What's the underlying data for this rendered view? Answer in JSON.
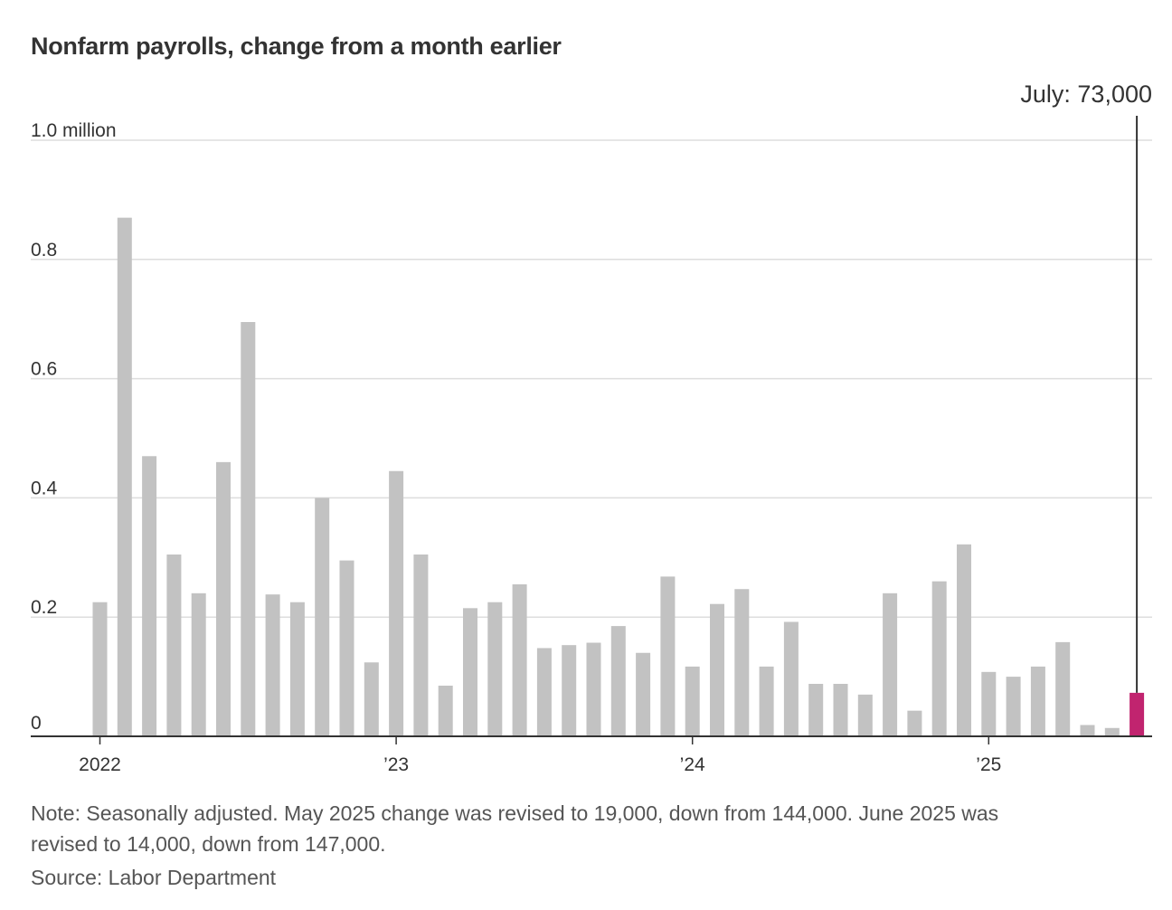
{
  "chart_data": {
    "type": "bar",
    "title": "Nonfarm payrolls, change from a month earlier",
    "ylabel": "",
    "xlabel": "",
    "ylim": [
      0,
      1.0
    ],
    "y_ticks": [
      {
        "value": 0,
        "label": "0"
      },
      {
        "value": 0.2,
        "label": "0.2"
      },
      {
        "value": 0.4,
        "label": "0.4"
      },
      {
        "value": 0.6,
        "label": "0.6"
      },
      {
        "value": 0.8,
        "label": "0.8"
      },
      {
        "value": 1.0,
        "label": "1.0 million"
      }
    ],
    "x_ticks": [
      {
        "index": 0,
        "label": "2022"
      },
      {
        "index": 12,
        "label": "’23"
      },
      {
        "index": 24,
        "label": "’24"
      },
      {
        "index": 36,
        "label": "’25"
      }
    ],
    "unit": "million",
    "categories": [
      "Jan 2022",
      "Feb 2022",
      "Mar 2022",
      "Apr 2022",
      "May 2022",
      "Jun 2022",
      "Jul 2022",
      "Aug 2022",
      "Sep 2022",
      "Oct 2022",
      "Nov 2022",
      "Dec 2022",
      "Jan 2023",
      "Feb 2023",
      "Mar 2023",
      "Apr 2023",
      "May 2023",
      "Jun 2023",
      "Jul 2023",
      "Aug 2023",
      "Sep 2023",
      "Oct 2023",
      "Nov 2023",
      "Dec 2023",
      "Jan 2024",
      "Feb 2024",
      "Mar 2024",
      "Apr 2024",
      "May 2024",
      "Jun 2024",
      "Jul 2024",
      "Aug 2024",
      "Sep 2024",
      "Oct 2024",
      "Nov 2024",
      "Dec 2024",
      "Jan 2025",
      "Feb 2025",
      "Mar 2025",
      "Apr 2025",
      "May 2025",
      "Jun 2025",
      "Jul 2025"
    ],
    "values": [
      0.225,
      0.87,
      0.47,
      0.305,
      0.24,
      0.46,
      0.695,
      0.238,
      0.225,
      0.4,
      0.295,
      0.124,
      0.445,
      0.305,
      0.085,
      0.215,
      0.225,
      0.255,
      0.148,
      0.153,
      0.157,
      0.185,
      0.14,
      0.268,
      0.117,
      0.222,
      0.247,
      0.117,
      0.192,
      0.088,
      0.088,
      0.07,
      0.24,
      0.043,
      0.26,
      0.322,
      0.108,
      0.1,
      0.117,
      0.158,
      0.019,
      0.014,
      0.073
    ],
    "highlight_index": 42,
    "colors": {
      "bar": "#c2c2c2",
      "highlight": "#c1246f",
      "grid": "#dddddd",
      "axis": "#333333",
      "callout_line": "#333333"
    },
    "annotation": {
      "label": "July: 73,000",
      "index": 42
    }
  },
  "footer": {
    "note_line1": "Note: Seasonally adjusted. May 2025 change was revised to 19,000, down from 144,000. June 2025 was",
    "note_line2": "revised to 14,000, down from 147,000.",
    "source": "Source: Labor Department"
  }
}
